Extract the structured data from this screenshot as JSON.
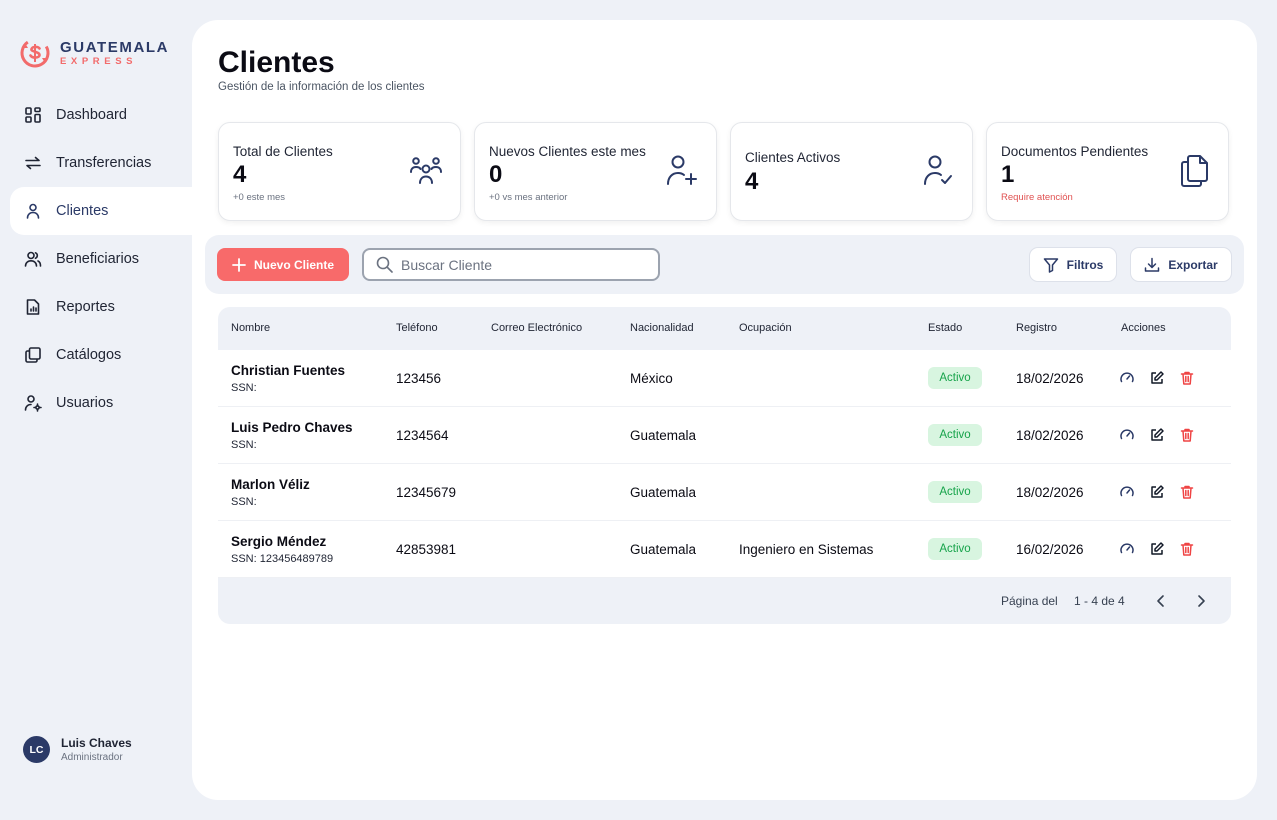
{
  "brand": {
    "name": "GUATEMALA",
    "sub": "EXPRESS",
    "accent": "#f26b6b",
    "primary": "#2b3a67"
  },
  "sidebar": {
    "items": [
      {
        "label": "Dashboard",
        "icon": "dashboard-icon"
      },
      {
        "label": "Transferencias",
        "icon": "transfer-icon"
      },
      {
        "label": "Clientes",
        "icon": "user-icon",
        "active": true
      },
      {
        "label": "Beneficiarios",
        "icon": "users-icon"
      },
      {
        "label": "Reportes",
        "icon": "report-icon"
      },
      {
        "label": "Catálogos",
        "icon": "catalog-icon"
      },
      {
        "label": "Usuarios",
        "icon": "user-gear-icon"
      }
    ]
  },
  "user": {
    "initials": "LC",
    "name": "Luis Chaves",
    "role": "Administrador"
  },
  "header": {
    "title": "Clientes",
    "subtitle": "Gestión de la información de los clientes"
  },
  "stats": [
    {
      "title": "Total de Clientes",
      "value": "4",
      "note": "+0 este mes",
      "icon": "group-icon"
    },
    {
      "title": "Nuevos Clientes este mes",
      "value": "0",
      "note": "+0 vs mes anterior",
      "icon": "user-plus-icon"
    },
    {
      "title": "Clientes Activos",
      "value": "4",
      "note": "",
      "icon": "user-check-icon"
    },
    {
      "title": "Documentos Pendientes",
      "value": "1",
      "note": "Require atención",
      "icon": "copy-documents-icon"
    }
  ],
  "toolbar": {
    "new_label": "Nuevo Cliente",
    "search_placeholder": "Buscar Cliente",
    "filter_label": "Filtros",
    "export_label": "Exportar"
  },
  "table": {
    "columns": [
      "Nombre",
      "Teléfono",
      "Correo Electrónico",
      "Nacionalidad",
      "Ocupación",
      "Estado",
      "Registro",
      "Acciones"
    ],
    "rows": [
      {
        "name": "Christian Fuentes",
        "ssn": "SSN:",
        "phone": "123456",
        "email": "",
        "nationality": "México",
        "occupation": "",
        "status": "Activo",
        "date": "18/02/2026"
      },
      {
        "name": "Luis Pedro Chaves",
        "ssn": "SSN:",
        "phone": "1234564",
        "email": "",
        "nationality": "Guatemala",
        "occupation": "",
        "status": "Activo",
        "date": "18/02/2026"
      },
      {
        "name": "Marlon Véliz",
        "ssn": "SSN:",
        "phone": "12345679",
        "email": "",
        "nationality": "Guatemala",
        "occupation": "",
        "status": "Activo",
        "date": "18/02/2026"
      },
      {
        "name": "Sergio Méndez",
        "ssn": "SSN: 123456489789",
        "phone": "42853981",
        "email": "",
        "nationality": "Guatemala",
        "occupation": "Ingeniero en Sistemas",
        "status": "Activo",
        "date": "16/02/2026"
      }
    ],
    "status_color": "#16a34a"
  },
  "pagination": {
    "label": "Página del",
    "range": "1 - 4 de 4"
  }
}
